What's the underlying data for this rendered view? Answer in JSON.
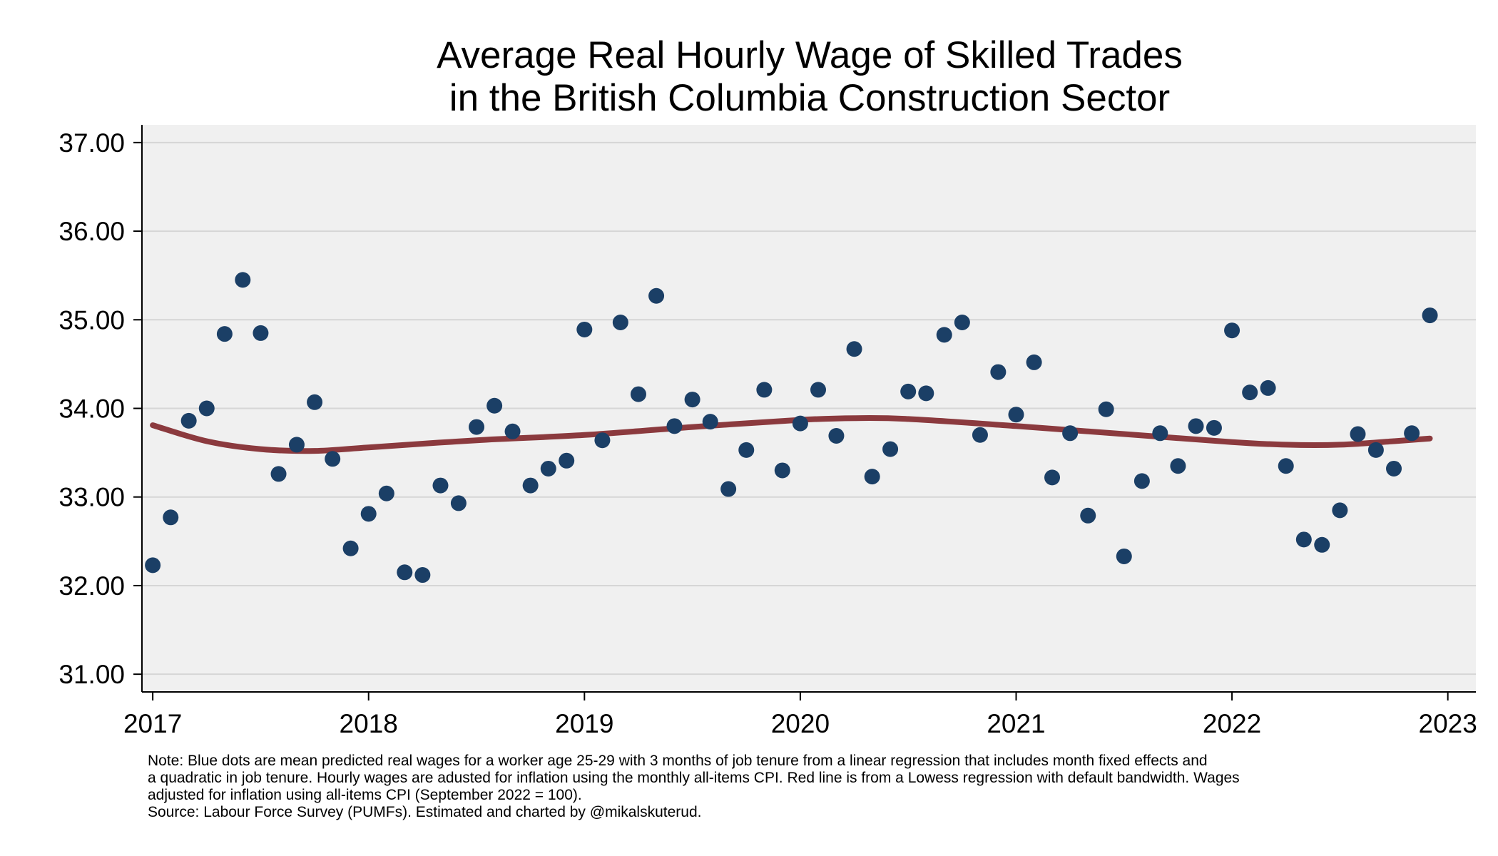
{
  "title_lines": [
    "Average Real Hourly Wage of Skilled Trades",
    "in the British Columbia Construction Sector"
  ],
  "note_lines": [
    "Note: Blue dots are mean predicted real wages for a worker age 25-29 with 3 months of job tenure from a linear regression that includes month fixed effects and",
    "a quadratic in job tenure. Hourly wages are adusted for inflation using the monthly all-items CPI. Red line is from a Lowess regression with default bandwidth. Wages",
    "adjusted for inflation using all-items CPI (September 2022 = 100).",
    "Source: Labour Force Survey (PUMFs). Estimated and charted by @mikalskuterud."
  ],
  "colors": {
    "plot_background": "#f0f0f0",
    "gridline": "#d6d6d6",
    "dots": "#1b3f66",
    "lowess_line": "#8b3a3e"
  },
  "chart_data": {
    "type": "scatter",
    "title": "Average Real Hourly Wage of Skilled Trades in the British Columbia Construction Sector",
    "xlabel": "",
    "ylabel": "",
    "x_ticks": [
      "2017",
      "2018",
      "2019",
      "2020",
      "2021",
      "2022",
      "2023"
    ],
    "y_ticks": [
      "31.00",
      "32.00",
      "33.00",
      "34.00",
      "35.00",
      "36.00",
      "37.00"
    ],
    "xlim": [
      2016.95,
      2023.13
    ],
    "ylim": [
      30.8,
      37.2
    ],
    "grid": true,
    "legend": "none",
    "series": [
      {
        "type": "scatter",
        "x": [
          2017.0,
          2017.083,
          2017.167,
          2017.25,
          2017.333,
          2017.417,
          2017.5,
          2017.583,
          2017.667,
          2017.75,
          2017.833,
          2017.917,
          2018.0,
          2018.083,
          2018.167,
          2018.25,
          2018.333,
          2018.417,
          2018.5,
          2018.583,
          2018.667,
          2018.75,
          2018.833,
          2018.917,
          2019.0,
          2019.083,
          2019.167,
          2019.25,
          2019.333,
          2019.417,
          2019.5,
          2019.583,
          2019.667,
          2019.75,
          2019.833,
          2019.917,
          2020.0,
          2020.083,
          2020.167,
          2020.25,
          2020.333,
          2020.417,
          2020.5,
          2020.583,
          2020.667,
          2020.75,
          2020.833,
          2020.917,
          2021.0,
          2021.083,
          2021.167,
          2021.25,
          2021.333,
          2021.417,
          2021.5,
          2021.583,
          2021.667,
          2021.75,
          2021.833,
          2021.917,
          2022.0,
          2022.083,
          2022.167,
          2022.25,
          2022.333,
          2022.417,
          2022.5,
          2022.583,
          2022.667,
          2022.75,
          2022.833,
          2022.917
        ],
        "y": [
          32.23,
          32.77,
          33.86,
          34.0,
          34.84,
          35.45,
          34.85,
          33.26,
          33.59,
          34.07,
          33.43,
          32.42,
          32.81,
          33.04,
          32.15,
          32.12,
          33.13,
          32.93,
          33.79,
          34.03,
          33.74,
          33.13,
          33.32,
          33.41,
          34.89,
          33.64,
          34.97,
          34.16,
          35.27,
          33.8,
          34.1,
          33.85,
          33.09,
          33.53,
          34.21,
          33.3,
          33.83,
          34.21,
          33.69,
          34.67,
          33.23,
          33.54,
          34.19,
          34.17,
          34.83,
          34.97,
          33.7,
          34.41,
          33.93,
          34.52,
          33.22,
          33.72,
          32.79,
          33.99,
          32.33,
          33.18,
          33.72,
          33.35,
          33.8,
          33.78,
          34.88,
          34.18,
          34.23,
          33.35,
          32.52,
          32.46,
          32.85,
          33.71,
          33.53,
          33.32,
          33.72,
          35.05
        ]
      },
      {
        "type": "line",
        "x": [
          2017.0,
          2017.25,
          2017.5,
          2017.75,
          2018.0,
          2018.5,
          2019.0,
          2019.5,
          2020.0,
          2020.25,
          2020.5,
          2021.0,
          2021.5,
          2022.0,
          2022.25,
          2022.5,
          2022.75,
          2022.917
        ],
        "y": [
          33.81,
          33.63,
          33.54,
          33.52,
          33.56,
          33.64,
          33.7,
          33.79,
          33.87,
          33.89,
          33.88,
          33.8,
          33.71,
          33.62,
          33.59,
          33.59,
          33.63,
          33.66
        ]
      }
    ]
  }
}
